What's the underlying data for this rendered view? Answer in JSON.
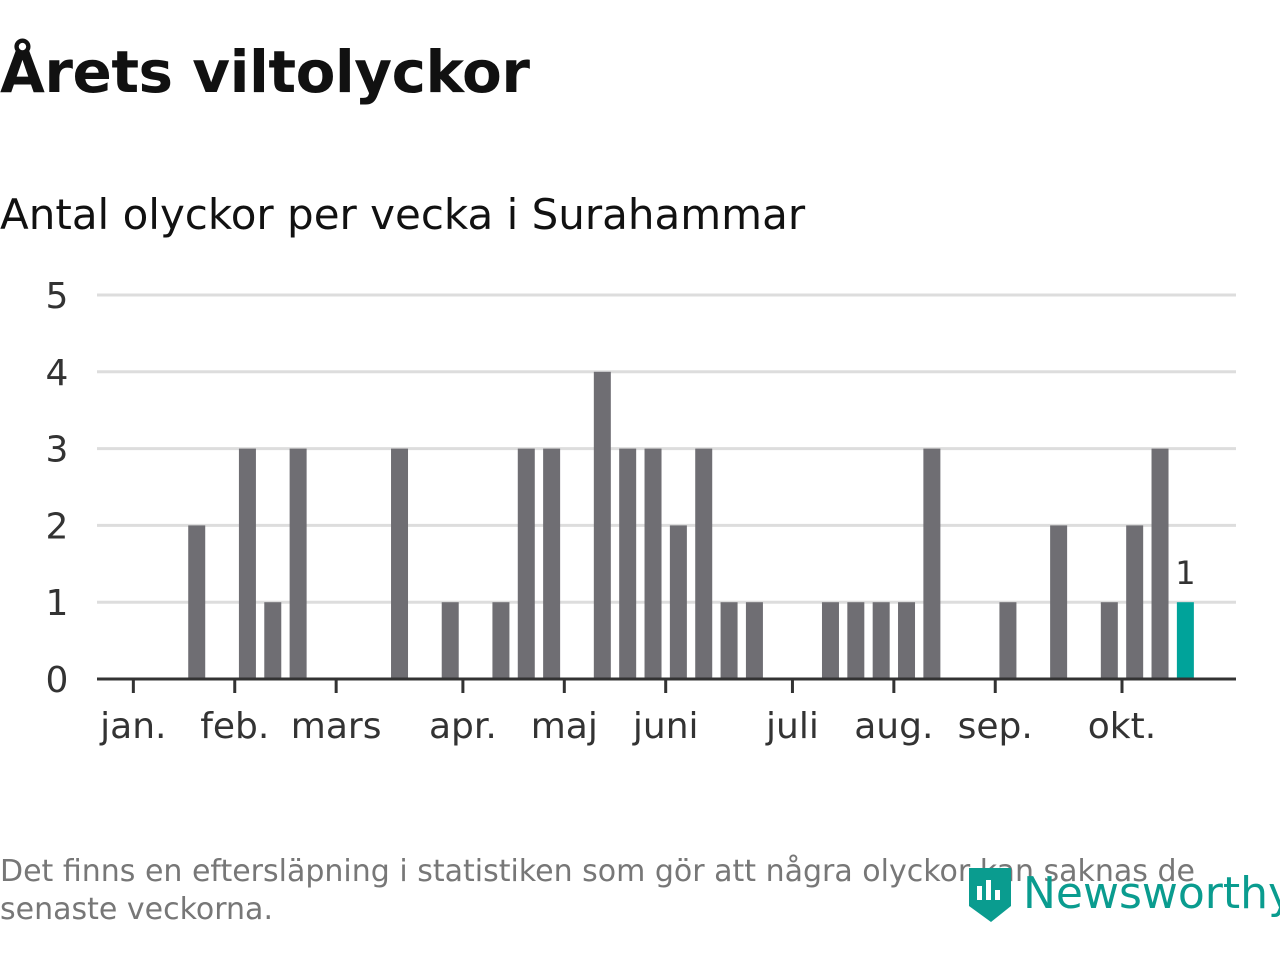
{
  "header": {
    "title": "Årets viltolyckor",
    "subtitle": "Antal olyckor per vecka i Surahammar"
  },
  "footer": {
    "note": "Det finns en eftersläpning i statistiken som gör att några olyckor kan saknas de senaste veckorna.",
    "logo_text": "Newsworthy"
  },
  "colors": {
    "bar": "#6f6e73",
    "highlight": "#00a39a",
    "grid": "#dddddd",
    "axis": "#333333",
    "logo": "#0a9c8f"
  },
  "chart_data": {
    "type": "bar",
    "ylim": [
      0,
      5
    ],
    "yticks": [
      0,
      1,
      2,
      3,
      4,
      5
    ],
    "grid": true,
    "weeks": [
      1,
      2,
      3,
      4,
      5,
      6,
      7,
      8,
      9,
      10,
      11,
      12,
      13,
      14,
      15,
      16,
      17,
      18,
      19,
      20,
      21,
      22,
      23,
      24,
      25,
      26,
      27,
      28,
      29,
      30,
      31,
      32,
      33,
      34,
      35,
      36,
      37,
      38,
      39,
      40,
      41,
      42,
      43
    ],
    "values": [
      0,
      0,
      0,
      2,
      0,
      3,
      1,
      3,
      0,
      0,
      0,
      3,
      0,
      1,
      0,
      1,
      3,
      3,
      0,
      4,
      3,
      3,
      2,
      3,
      1,
      1,
      0,
      0,
      1,
      1,
      1,
      1,
      3,
      0,
      0,
      1,
      0,
      2,
      0,
      1,
      2,
      3,
      1
    ],
    "highlight_index": 42,
    "highlight_label": "1",
    "month_ticks": [
      {
        "label": "jan.",
        "week": 1.5
      },
      {
        "label": "feb.",
        "week": 5.5
      },
      {
        "label": "mars",
        "week": 9.5
      },
      {
        "label": "apr.",
        "week": 14.5
      },
      {
        "label": "maj",
        "week": 18.5
      },
      {
        "label": "juni",
        "week": 22.5
      },
      {
        "label": "juli",
        "week": 27.5
      },
      {
        "label": "aug.",
        "week": 31.5
      },
      {
        "label": "sep.",
        "week": 35.5
      },
      {
        "label": "okt.",
        "week": 40.5
      }
    ]
  }
}
